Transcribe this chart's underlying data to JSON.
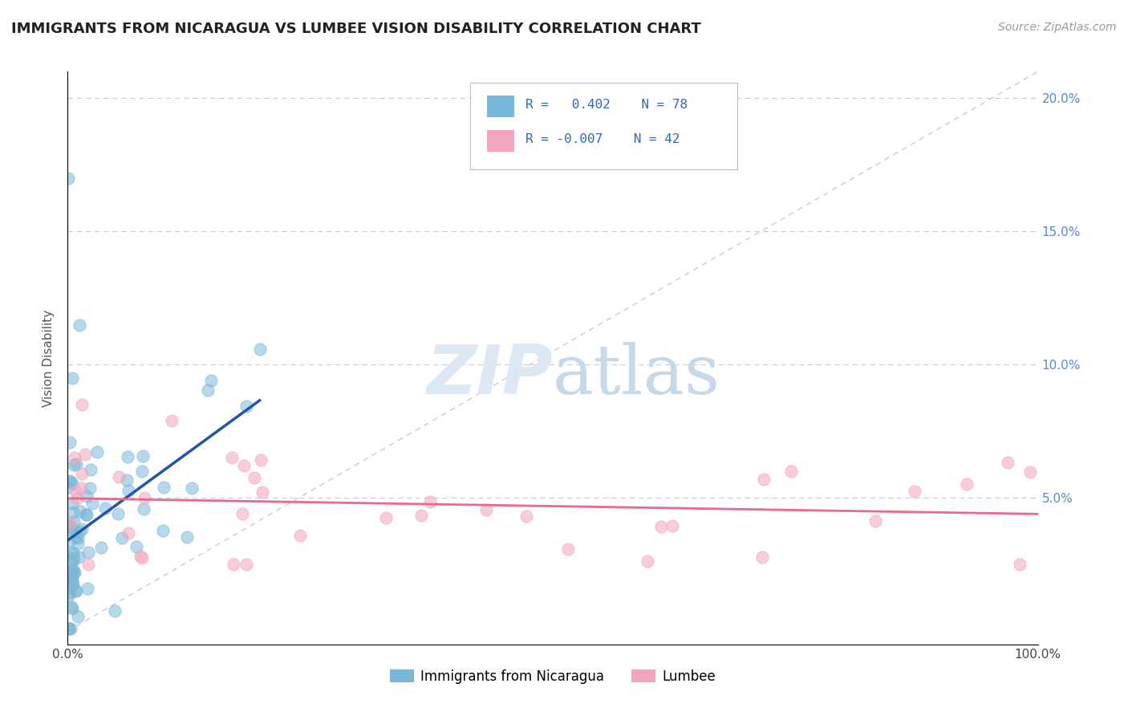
{
  "title": "IMMIGRANTS FROM NICARAGUA VS LUMBEE VISION DISABILITY CORRELATION CHART",
  "source": "Source: ZipAtlas.com",
  "ylabel": "Vision Disability",
  "xlim": [
    0,
    1.0
  ],
  "ylim": [
    -0.005,
    0.21
  ],
  "xticks": [
    0.0,
    0.2,
    0.4,
    0.6,
    0.8,
    1.0
  ],
  "xticklabels": [
    "0.0%",
    "",
    "",
    "",
    "",
    "100.0%"
  ],
  "yticks_right": [
    0.0,
    0.05,
    0.1,
    0.15,
    0.2
  ],
  "yticklabels_right": [
    "",
    "5.0%",
    "10.0%",
    "15.0%",
    "20.0%"
  ],
  "color_nicaragua": "#7ab8d9",
  "color_lumbee": "#f4a5be",
  "color_line_nicaragua": "#2255aa",
  "color_line_lumbee": "#ee6688",
  "color_diagonal": "#cccccc",
  "background_color": "#ffffff",
  "grid_color": "#cccccc",
  "title_color": "#222222",
  "source_color": "#999999",
  "tick_color": "#5588cc",
  "watermark_color": "#dde8f5"
}
